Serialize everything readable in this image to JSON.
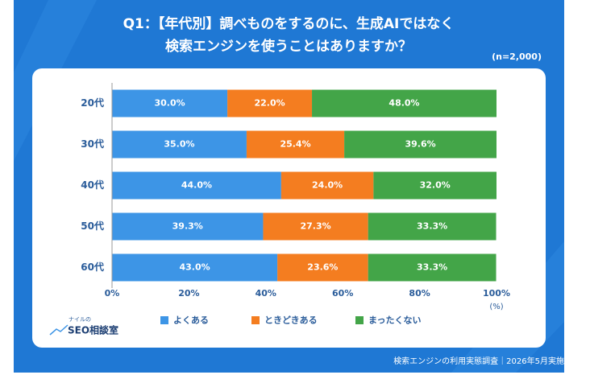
{
  "chart_data": {
    "type": "stacked-bar-horizontal",
    "title": [
      "Q1：【年代別】調べものをするのに、生成AIではなく",
      "検索エンジンを使うことはありますか？"
    ],
    "note": "(n=2,000)",
    "xlabel": "(%)",
    "categories": [
      "20代",
      "30代",
      "40代",
      "50代",
      "60代"
    ],
    "series": [
      {
        "name": "よくある",
        "color": "#3d95e6",
        "values": [
          30.0,
          35.0,
          44.0,
          39.3,
          43.0
        ],
        "value_labels": [
          "30.0%",
          "35.0%",
          "44.0%",
          "39.3%",
          "43.0%"
        ]
      },
      {
        "name": "ときどきある",
        "color": "#f47d20",
        "values": [
          22.0,
          25.4,
          24.0,
          27.3,
          23.6
        ],
        "value_labels": [
          "22.0%",
          "25.4%",
          "24.0%",
          "27.3%",
          "23.6%"
        ]
      },
      {
        "name": "まったくない",
        "color": "#43a548",
        "values": [
          48.0,
          39.6,
          32.0,
          33.3,
          33.3
        ],
        "value_labels": [
          "48.0%",
          "39.6%",
          "32.0%",
          "33.3%",
          "33.3%"
        ]
      }
    ],
    "xlim": [
      0,
      100
    ],
    "xticks": [
      {
        "value": 0,
        "label": "0%"
      },
      {
        "value": 20,
        "label": "20%"
      },
      {
        "value": 40,
        "label": "40%"
      },
      {
        "value": 60,
        "label": "60%"
      },
      {
        "value": 80,
        "label": "80%"
      },
      {
        "value": 100,
        "label": "100%"
      }
    ],
    "source": "検索エンジンの利用実態調査｜2026年5月実施"
  },
  "logo": [
    "ナイルの",
    "SEO相談室"
  ]
}
